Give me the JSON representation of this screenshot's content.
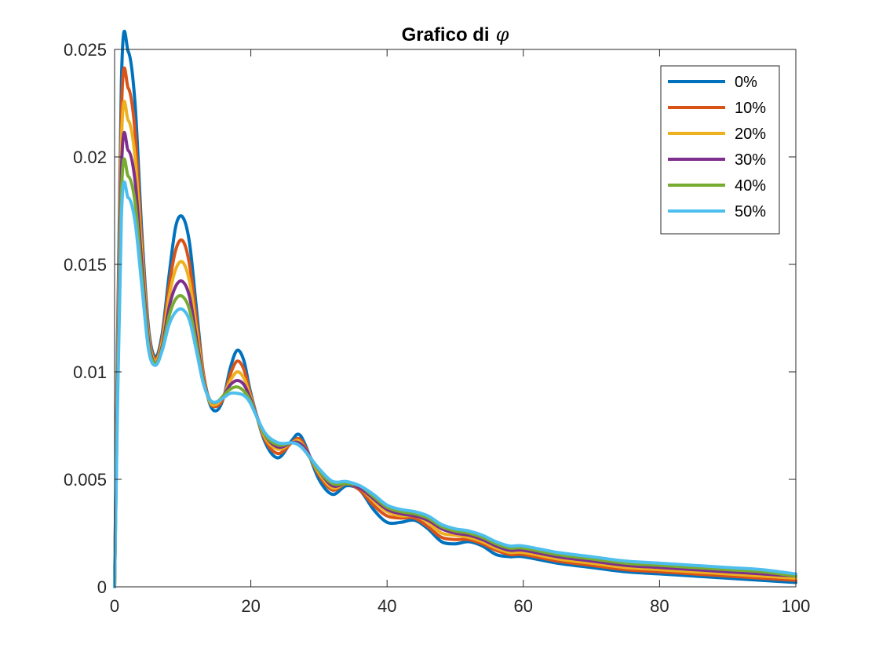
{
  "chart_data": {
    "type": "line",
    "title": "Grafico di",
    "title_symbol": "φ",
    "xlabel": "",
    "ylabel": "",
    "xlim": [
      0,
      100
    ],
    "ylim": [
      0,
      0.025
    ],
    "x_ticks": [
      0,
      20,
      40,
      60,
      80,
      100
    ],
    "x_tick_labels": [
      "0",
      "20",
      "40",
      "60",
      "80",
      "100"
    ],
    "y_ticks": [
      0,
      0.005,
      0.01,
      0.015,
      0.02,
      0.025
    ],
    "y_tick_labels": [
      "0",
      "0.005",
      "0.01",
      "0.015",
      "0.02",
      "0.025"
    ],
    "grid": false,
    "legend_position": "top-right",
    "x": [
      0,
      1,
      2,
      3,
      4,
      5,
      6,
      7,
      8,
      9,
      10,
      11,
      12,
      13,
      14,
      15,
      16,
      17,
      18,
      19,
      20,
      22,
      24,
      26,
      27,
      28,
      30,
      32,
      34,
      36,
      38,
      40,
      42,
      44,
      46,
      48,
      50,
      52,
      54,
      56,
      58,
      60,
      65,
      70,
      75,
      80,
      85,
      90,
      95,
      100
    ],
    "series": [
      {
        "name": "0%",
        "color": "#0072BD",
        "values": [
          0,
          0.0235,
          0.0249,
          0.0225,
          0.0165,
          0.012,
          0.0107,
          0.0118,
          0.0145,
          0.0168,
          0.0172,
          0.016,
          0.013,
          0.01,
          0.0085,
          0.0082,
          0.0088,
          0.0102,
          0.011,
          0.0105,
          0.009,
          0.0068,
          0.006,
          0.0068,
          0.0071,
          0.0066,
          0.005,
          0.0043,
          0.0047,
          0.0045,
          0.0036,
          0.003,
          0.003,
          0.0031,
          0.0027,
          0.0021,
          0.002,
          0.0021,
          0.0019,
          0.0015,
          0.0014,
          0.0014,
          0.0011,
          0.0009,
          0.0007,
          0.0006,
          0.0005,
          0.0004,
          0.0003,
          0.0002
        ]
      },
      {
        "name": "10%",
        "color": "#D95319",
        "values": [
          0,
          0.022,
          0.0232,
          0.0212,
          0.016,
          0.0118,
          0.0106,
          0.0116,
          0.014,
          0.0157,
          0.0161,
          0.015,
          0.0125,
          0.01,
          0.0086,
          0.0084,
          0.0088,
          0.0099,
          0.0105,
          0.0101,
          0.0089,
          0.0069,
          0.0062,
          0.0067,
          0.0069,
          0.0065,
          0.0052,
          0.0045,
          0.0048,
          0.0045,
          0.0038,
          0.0033,
          0.0032,
          0.0032,
          0.0028,
          0.0023,
          0.0022,
          0.0022,
          0.002,
          0.0017,
          0.0015,
          0.0015,
          0.0012,
          0.001,
          0.0008,
          0.0007,
          0.0006,
          0.0005,
          0.0004,
          0.0003
        ]
      },
      {
        "name": "20%",
        "color": "#EDB120",
        "values": [
          0,
          0.0206,
          0.0217,
          0.02,
          0.0155,
          0.0116,
          0.0105,
          0.0114,
          0.0135,
          0.0148,
          0.0151,
          0.0142,
          0.012,
          0.0098,
          0.0086,
          0.0085,
          0.0089,
          0.0096,
          0.01,
          0.0097,
          0.0088,
          0.007,
          0.0064,
          0.0067,
          0.0068,
          0.0064,
          0.0053,
          0.0046,
          0.0048,
          0.0046,
          0.004,
          0.0035,
          0.0033,
          0.0033,
          0.003,
          0.0025,
          0.0024,
          0.0023,
          0.0021,
          0.0018,
          0.0016,
          0.0016,
          0.0013,
          0.0011,
          0.0009,
          0.0008,
          0.0007,
          0.0006,
          0.0005,
          0.0004
        ]
      },
      {
        "name": "30%",
        "color": "#7E2F8E",
        "values": [
          0,
          0.0193,
          0.0203,
          0.0189,
          0.015,
          0.0114,
          0.0104,
          0.0112,
          0.013,
          0.014,
          0.0142,
          0.0135,
          0.0116,
          0.0097,
          0.0087,
          0.0086,
          0.0089,
          0.0094,
          0.0096,
          0.0094,
          0.0087,
          0.0071,
          0.0065,
          0.0067,
          0.0067,
          0.0064,
          0.0054,
          0.0047,
          0.0048,
          0.0046,
          0.0041,
          0.0036,
          0.0034,
          0.0033,
          0.0031,
          0.0027,
          0.0025,
          0.0024,
          0.0022,
          0.0019,
          0.0017,
          0.0017,
          0.0014,
          0.0012,
          0.001,
          0.0009,
          0.0008,
          0.0007,
          0.0006,
          0.0005
        ]
      },
      {
        "name": "40%",
        "color": "#77AC30",
        "values": [
          0,
          0.0182,
          0.0191,
          0.0179,
          0.0145,
          0.0112,
          0.0104,
          0.0111,
          0.0126,
          0.0134,
          0.0135,
          0.0129,
          0.0113,
          0.0096,
          0.0087,
          0.0086,
          0.0089,
          0.0092,
          0.0093,
          0.0091,
          0.0086,
          0.0071,
          0.0066,
          0.0067,
          0.0066,
          0.0063,
          0.0054,
          0.0048,
          0.0048,
          0.0047,
          0.0042,
          0.0037,
          0.0035,
          0.0034,
          0.0032,
          0.0028,
          0.0026,
          0.0025,
          0.0023,
          0.002,
          0.0018,
          0.0018,
          0.0015,
          0.0013,
          0.0011,
          0.001,
          0.0009,
          0.0008,
          0.0007,
          0.0005
        ]
      },
      {
        "name": "50%",
        "color": "#4DBEEE",
        "values": [
          0,
          0.0172,
          0.0181,
          0.017,
          0.014,
          0.011,
          0.0103,
          0.011,
          0.0122,
          0.0128,
          0.0129,
          0.0124,
          0.011,
          0.0095,
          0.0087,
          0.0086,
          0.0088,
          0.009,
          0.009,
          0.0089,
          0.0085,
          0.0072,
          0.0067,
          0.0067,
          0.0066,
          0.0063,
          0.0055,
          0.0049,
          0.0049,
          0.0047,
          0.0043,
          0.0038,
          0.0036,
          0.0035,
          0.0033,
          0.0029,
          0.0027,
          0.0026,
          0.0024,
          0.0021,
          0.0019,
          0.0019,
          0.0016,
          0.0014,
          0.0012,
          0.0011,
          0.001,
          0.0009,
          0.0008,
          0.0006
        ]
      }
    ]
  }
}
